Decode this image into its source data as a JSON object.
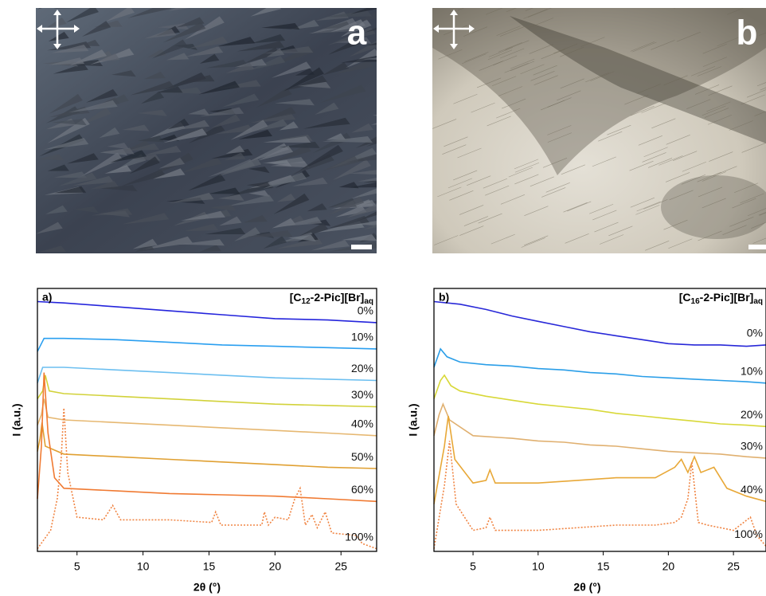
{
  "images": [
    {
      "label": "a"
    },
    {
      "label": "b"
    }
  ],
  "chart_data": [
    {
      "type": "line",
      "label": "a)",
      "title_parts": [
        "[C",
        "12",
        "-2-Pic][Br]",
        "aq"
      ],
      "ylabel": "I (a.u.)",
      "xlabel": "2θ (°)",
      "xlim": [
        2,
        27.7
      ],
      "ylim": [
        0,
        100
      ],
      "xticks": [
        5,
        10,
        15,
        20,
        25
      ],
      "series": [
        {
          "name": "0%",
          "color": "#2424dc",
          "style": "solid",
          "x": [
            2,
            4,
            8,
            12,
            16,
            20,
            24,
            27.7
          ],
          "values": [
            95,
            94.5,
            93,
            91.5,
            90,
            88.5,
            88,
            87
          ]
        },
        {
          "name": "10%",
          "color": "#2a9ff0",
          "style": "solid",
          "x": [
            2,
            2.5,
            4,
            8,
            12,
            16,
            20,
            24,
            27.7
          ],
          "values": [
            76,
            81,
            81,
            80.5,
            79.5,
            78.5,
            78,
            77.5,
            77
          ]
        },
        {
          "name": "20%",
          "color": "#6cbff0",
          "style": "solid",
          "x": [
            2,
            2.4,
            4,
            8,
            12,
            16,
            20,
            24,
            27.7
          ],
          "values": [
            64,
            70,
            70,
            69,
            68,
            67,
            66,
            65.5,
            65
          ]
        },
        {
          "name": "30%",
          "color": "#d2d23a",
          "style": "solid",
          "x": [
            2,
            2.4,
            2.6,
            2.9,
            4,
            8,
            12,
            16,
            20,
            24,
            27.7
          ],
          "values": [
            58,
            61,
            67,
            61,
            60,
            59,
            58,
            57,
            56,
            55.5,
            55
          ]
        },
        {
          "name": "40%",
          "color": "#e6b872",
          "style": "solid",
          "x": [
            2,
            2.3,
            2.5,
            2.8,
            4,
            8,
            12,
            16,
            20,
            24,
            27.7
          ],
          "values": [
            48,
            52,
            58,
            51,
            50,
            49,
            48,
            47,
            46,
            45,
            44
          ]
        },
        {
          "name": "50%",
          "color": "#e0a032",
          "style": "solid",
          "x": [
            2,
            2.2,
            2.35,
            2.6,
            4,
            8,
            12,
            16,
            20,
            24,
            27.7
          ],
          "values": [
            38,
            43,
            49,
            40,
            37,
            36,
            35,
            34,
            33,
            32,
            31.5
          ]
        },
        {
          "name": "60%",
          "color": "#f07a32",
          "style": "solid",
          "x": [
            2,
            2.3,
            2.5,
            2.8,
            3.3,
            4,
            8,
            12,
            16,
            20,
            24,
            27.7
          ],
          "values": [
            20,
            40,
            68,
            45,
            28,
            24,
            23,
            22,
            21.5,
            21,
            20,
            19
          ]
        },
        {
          "name": "100%",
          "color": "#f08442",
          "style": "dotted",
          "x": [
            2,
            3,
            3.5,
            3.8,
            4,
            4.3,
            5,
            7,
            7.7,
            8.3,
            12,
            15.2,
            15.5,
            15.9,
            19,
            19.2,
            19.5,
            20,
            21,
            21.5,
            21.9,
            22.3,
            22.8,
            23.2,
            23.8,
            24.3,
            26.2,
            26.6,
            27.7
          ],
          "values": [
            1,
            8,
            20,
            35,
            54.5,
            30,
            13,
            12,
            17.5,
            12,
            12,
            11,
            15,
            10,
            10,
            15,
            10,
            13,
            12,
            20,
            24,
            10,
            14,
            9,
            15,
            7,
            6,
            3,
            1
          ]
        }
      ]
    },
    {
      "type": "line",
      "label": "b)",
      "title_parts": [
        "[C",
        "16",
        "-2-Pic][Br]",
        "aq"
      ],
      "ylabel": "I (a.u.)",
      "xlabel": "2θ (°)",
      "xlim": [
        2,
        27.5
      ],
      "ylim": [
        0,
        100
      ],
      "xticks": [
        5,
        10,
        15,
        20,
        25
      ],
      "series": [
        {
          "name": "0%",
          "color": "#2828d8",
          "style": "solid",
          "x": [
            2,
            4,
            6,
            8,
            10,
            12,
            14,
            16,
            18,
            20,
            22,
            24,
            26,
            27.5
          ],
          "values": [
            95,
            94,
            92,
            89.5,
            87.5,
            85.5,
            83.5,
            82,
            80.5,
            79,
            78.5,
            78.5,
            78,
            78.5
          ]
        },
        {
          "name": "10%",
          "color": "#2a9ee8",
          "style": "solid",
          "x": [
            2,
            2.5,
            3,
            4,
            6,
            8,
            10,
            12,
            14,
            16,
            18,
            20,
            22,
            24,
            26,
            27.5
          ],
          "values": [
            70,
            77,
            74,
            72,
            71,
            70.5,
            69.5,
            69,
            68,
            67.5,
            66.5,
            66,
            65.5,
            65,
            64.5,
            64
          ]
        },
        {
          "name": "20%",
          "color": "#d8d838",
          "style": "solid",
          "x": [
            2,
            2.5,
            2.8,
            3.3,
            4,
            6,
            8,
            10,
            12,
            14,
            16,
            18,
            20,
            22,
            24,
            26,
            27.5
          ],
          "values": [
            58,
            65,
            67,
            63,
            61,
            59,
            57.5,
            56,
            55,
            54,
            52.5,
            51.5,
            50.5,
            49.5,
            48.5,
            48,
            47.5
          ]
        },
        {
          "name": "30%",
          "color": "#e0b070",
          "style": "solid",
          "x": [
            2,
            2.4,
            2.7,
            3.2,
            5,
            8,
            10,
            12,
            14,
            16,
            18,
            20,
            22,
            24,
            26,
            27.5
          ],
          "values": [
            44,
            52,
            56,
            50,
            44,
            43,
            42,
            41.5,
            40.5,
            40,
            39,
            38,
            37.5,
            37,
            36,
            35.5
          ]
        },
        {
          "name": "40%",
          "color": "#e8a838",
          "style": "solid",
          "x": [
            2,
            2.8,
            3.1,
            3.6,
            5,
            6,
            6.3,
            6.7,
            10,
            13,
            16,
            19,
            20.5,
            21,
            21.5,
            22,
            22.5,
            23.5,
            24.5,
            26,
            27.5
          ],
          "values": [
            18,
            40,
            51.5,
            35,
            26,
            27,
            31,
            26,
            26,
            27,
            28,
            28,
            32,
            35,
            30,
            36,
            30,
            32,
            24,
            21,
            19
          ]
        },
        {
          "name": "100%",
          "color": "#f08442",
          "style": "dotted",
          "x": [
            2,
            2.8,
            3.2,
            3.7,
            5,
            6,
            6.3,
            6.7,
            10,
            13,
            16,
            19,
            20.5,
            21,
            21.5,
            21.8,
            22.3,
            23,
            25,
            26.3,
            26.8,
            27.5
          ],
          "values": [
            1,
            25,
            42,
            18,
            8,
            9,
            13,
            8,
            8,
            9,
            10,
            10,
            11,
            13,
            20,
            34,
            11,
            10,
            8,
            13,
            6,
            2
          ]
        }
      ]
    }
  ]
}
